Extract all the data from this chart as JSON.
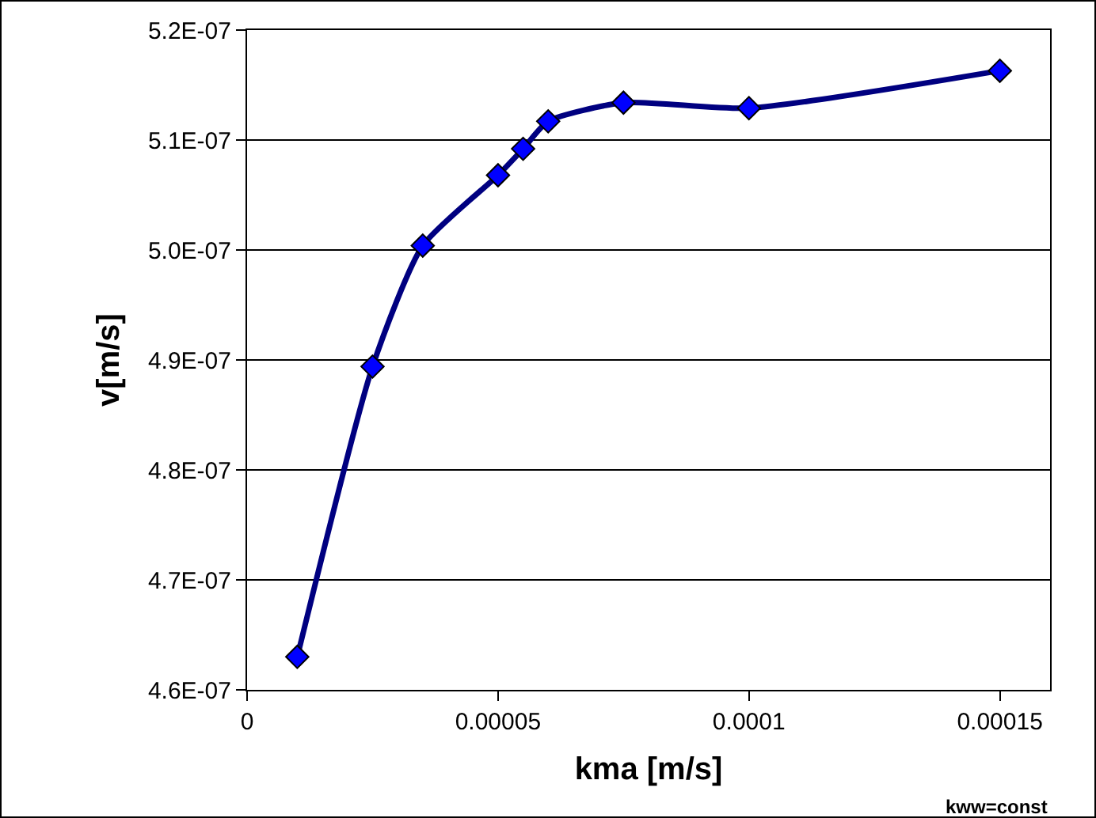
{
  "chart_data": {
    "type": "line",
    "xlabel": "kma [m/s]",
    "ylabel": "v[m/s]",
    "x": [
      1e-05,
      2.5e-05,
      3.5e-05,
      5e-05,
      5.5e-05,
      6e-05,
      7.5e-05,
      0.0001,
      0.00015
    ],
    "series": [
      {
        "color": "#000080",
        "values": [
          4.63e-07,
          4.894e-07,
          5.004e-07,
          5.068e-07,
          5.092e-07,
          5.117e-07,
          5.134e-07,
          5.129e-07,
          5.163e-07
        ]
      }
    ],
    "marker": "diamond",
    "line_style": "solid",
    "grid": "y",
    "xlim": [
      0,
      0.00016
    ],
    "xticks": [
      0,
      {
        "value": 5e-05,
        "label": "0.00005"
      },
      {
        "value": 0.0001,
        "label": "0.0001"
      },
      {
        "value": 0.00015,
        "label": "0.00015"
      }
    ],
    "ylim": [
      4.6e-07,
      5.2e-07
    ],
    "yticks": [
      {
        "value": 4.6e-07,
        "label": "4.6E-07"
      },
      {
        "value": 4.7e-07,
        "label": "4.7E-07"
      },
      {
        "value": 4.8e-07,
        "label": "4.8E-07"
      },
      {
        "value": 4.9e-07,
        "label": "4.9E-07"
      },
      {
        "value": 5e-07,
        "label": "5.0E-07"
      },
      {
        "value": 5.1e-07,
        "label": "5.1E-07"
      },
      {
        "value": 5.2e-07,
        "label": "5.2E-07"
      }
    ],
    "annotations": [
      "kww=const"
    ]
  }
}
